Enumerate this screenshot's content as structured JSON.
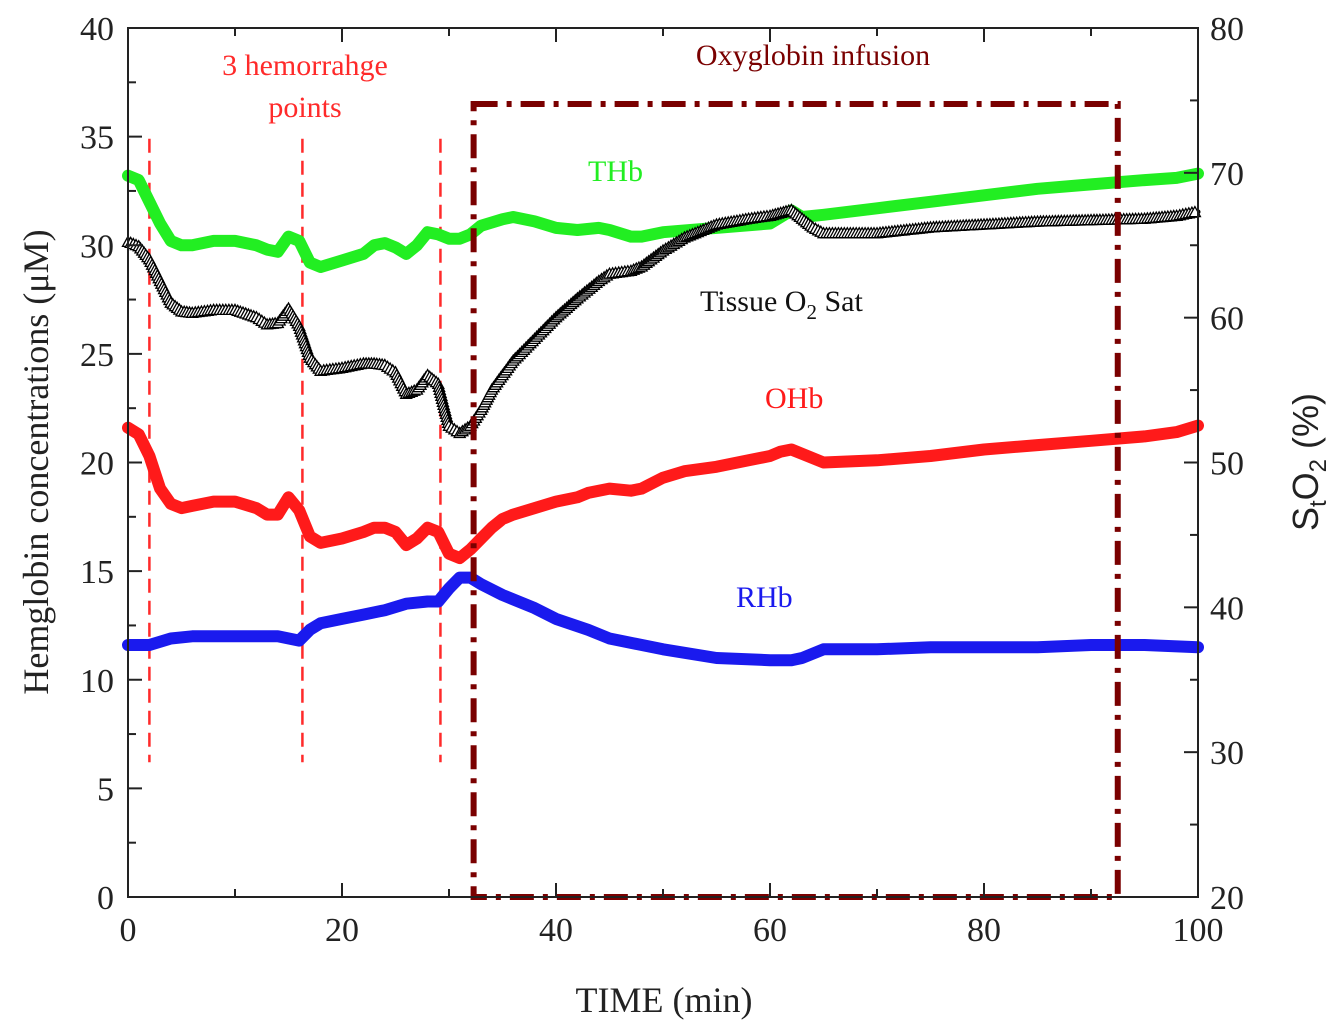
{
  "chart_data": {
    "type": "line",
    "xlabel": "TIME (min)",
    "ylabel_left": "Hemglobin concentrations (μM)",
    "ylabel_right": {
      "base": "S",
      "sub1": "t",
      "mid": "O",
      "sub2": "2",
      "tail": " (%)"
    },
    "xlim": [
      0,
      100
    ],
    "ylim_left": [
      0,
      40
    ],
    "ylim_right": [
      20,
      80
    ],
    "x_ticks": [
      0,
      20,
      40,
      60,
      80,
      100
    ],
    "y_left_ticks": [
      0,
      5,
      10,
      15,
      20,
      25,
      30,
      35,
      40
    ],
    "y_right_ticks": [
      20,
      30,
      40,
      50,
      60,
      70,
      80
    ],
    "grid": false,
    "series": [
      {
        "name": "THb",
        "axis": "left",
        "color": "#22ee22",
        "style": "thick",
        "x": [
          0,
          1,
          2,
          3,
          4,
          5,
          6,
          8,
          10,
          12,
          13,
          14,
          15,
          16,
          17,
          18,
          20,
          22,
          23,
          24,
          25,
          26,
          27,
          28,
          29,
          30,
          31,
          32,
          33,
          35,
          36,
          38,
          40,
          42,
          44,
          45,
          47,
          48,
          50,
          55,
          60,
          61,
          62,
          63,
          65,
          70,
          75,
          80,
          85,
          90,
          95,
          98,
          100
        ],
        "y": [
          33.2,
          33,
          32,
          31,
          30.2,
          30,
          30,
          30.2,
          30.2,
          30,
          29.8,
          29.7,
          30.4,
          30.2,
          29.2,
          29,
          29.3,
          29.6,
          30,
          30.1,
          29.9,
          29.6,
          30,
          30.6,
          30.5,
          30.3,
          30.3,
          30.5,
          30.9,
          31.2,
          31.3,
          31.1,
          30.8,
          30.7,
          30.8,
          30.7,
          30.4,
          30.4,
          30.6,
          30.8,
          31,
          31.3,
          31.6,
          31.3,
          31.4,
          31.7,
          32,
          32.3,
          32.6,
          32.8,
          33,
          33.1,
          33.3
        ]
      },
      {
        "name": "OHb",
        "axis": "left",
        "color": "#ff1a1a",
        "style": "thick",
        "x": [
          0,
          1,
          2,
          3,
          4,
          5,
          6,
          8,
          10,
          12,
          13,
          14,
          15,
          16,
          17,
          18,
          20,
          22,
          23,
          24,
          25,
          26,
          27,
          28,
          29,
          30,
          31,
          32,
          33,
          34,
          35,
          36,
          38,
          40,
          42,
          43,
          44,
          45,
          47,
          48,
          50,
          52,
          55,
          58,
          60,
          61,
          62,
          63,
          65,
          70,
          75,
          80,
          85,
          90,
          95,
          98,
          100
        ],
        "y": [
          21.6,
          21.3,
          20.3,
          18.8,
          18.1,
          17.9,
          18,
          18.2,
          18.2,
          17.9,
          17.6,
          17.6,
          18.4,
          17.8,
          16.6,
          16.3,
          16.5,
          16.8,
          17,
          17,
          16.8,
          16.2,
          16.5,
          17,
          16.8,
          15.8,
          15.6,
          16,
          16.5,
          17,
          17.4,
          17.6,
          17.9,
          18.2,
          18.4,
          18.6,
          18.7,
          18.8,
          18.7,
          18.8,
          19.3,
          19.6,
          19.8,
          20.1,
          20.3,
          20.5,
          20.6,
          20.4,
          20,
          20.1,
          20.3,
          20.6,
          20.8,
          21,
          21.2,
          21.4,
          21.7
        ]
      },
      {
        "name": "RHb",
        "axis": "left",
        "color": "#1a1aee",
        "style": "thick",
        "x": [
          0,
          2,
          4,
          6,
          8,
          10,
          12,
          14,
          16,
          17,
          18,
          20,
          22,
          24,
          26,
          28,
          29,
          30,
          31,
          32,
          33,
          35,
          38,
          40,
          43,
          45,
          50,
          55,
          60,
          62,
          63,
          65,
          70,
          75,
          80,
          85,
          90,
          95,
          100
        ],
        "y": [
          11.6,
          11.6,
          11.9,
          12,
          12,
          12,
          12,
          12,
          11.8,
          12.3,
          12.6,
          12.8,
          13,
          13.2,
          13.5,
          13.6,
          13.6,
          14.2,
          14.7,
          14.7,
          14.4,
          13.9,
          13.3,
          12.8,
          12.3,
          11.9,
          11.4,
          11,
          10.9,
          10.9,
          11,
          11.4,
          11.4,
          11.5,
          11.5,
          11.5,
          11.6,
          11.6,
          11.5
        ]
      },
      {
        "name": "Tissue O2 Sat",
        "axis": "right",
        "color": "#000000",
        "style": "triangles",
        "x": [
          0,
          1,
          2,
          3,
          4,
          5,
          6,
          8,
          10,
          12,
          13,
          14,
          15,
          16,
          17,
          18,
          20,
          22,
          23,
          24,
          25,
          26,
          27,
          28,
          29,
          30,
          31,
          32,
          33,
          34,
          35,
          36,
          38,
          40,
          42,
          44,
          45,
          47,
          48,
          50,
          52,
          55,
          58,
          60,
          61,
          62,
          63,
          64,
          65,
          70,
          75,
          80,
          85,
          90,
          95,
          98,
          100
        ],
        "y": [
          65.2,
          64.9,
          64,
          62.5,
          61,
          60.4,
          60.3,
          60.5,
          60.5,
          60,
          59.5,
          59.6,
          60.6,
          59.4,
          57.2,
          56.3,
          56.5,
          56.8,
          56.8,
          56.7,
          56.2,
          54.7,
          55,
          56,
          55.4,
          52.5,
          52,
          52.5,
          53.6,
          55,
          56,
          57,
          58.5,
          60,
          61.3,
          62.5,
          63,
          63.2,
          63.5,
          64.6,
          65.5,
          66.4,
          66.8,
          67,
          67.2,
          67.4,
          66.8,
          66.2,
          65.8,
          65.8,
          66.2,
          66.4,
          66.6,
          66.7,
          66.8,
          67,
          67.3
        ]
      }
    ],
    "hemorrhage_lines": {
      "color": "#ff2a2a",
      "x": [
        2,
        16.3,
        29.2
      ],
      "y_tops": [
        34.9,
        34.9,
        34.9
      ],
      "y_bottom": 6.2
    },
    "infusion_box": {
      "color": "#7a0000",
      "x0": 32.3,
      "x1": 92.5,
      "y0": 0,
      "y1": 36.5
    },
    "annotations": {
      "thb": {
        "text": "THb",
        "color": "#22ee22"
      },
      "ohb": {
        "text": "OHb",
        "color": "#ff1a1a"
      },
      "rhb": {
        "text": "RHb",
        "color": "#1a1aee"
      },
      "tissue_prefix": "Tissue O",
      "tissue_sub": "2",
      "tissue_suffix": " Sat",
      "tissue_color": "#111111",
      "hemorrhage_line1": "3 hemorrahge",
      "hemorrhage_line2": "points",
      "hemorrhage_color": "#ff2a2a",
      "infusion": "Oxyglobin infusion",
      "infusion_color": "#7a0000"
    }
  }
}
